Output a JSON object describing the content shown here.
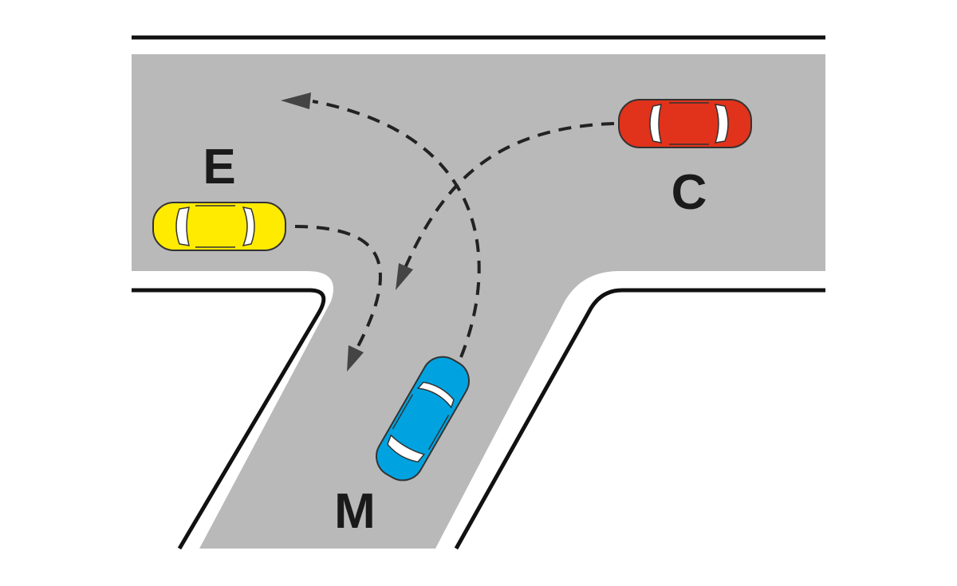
{
  "vehicles": [
    {
      "id": "E",
      "label": "E",
      "color": "#ffeb00"
    },
    {
      "id": "C",
      "label": "C",
      "color": "#e1321b"
    },
    {
      "id": "M",
      "label": "M",
      "color": "#00a3e0"
    }
  ],
  "colors": {
    "road": "#b9b9b9",
    "edge_line": "#111111",
    "path": "#222222",
    "arrow": "#444444",
    "window": "#ffffff"
  }
}
